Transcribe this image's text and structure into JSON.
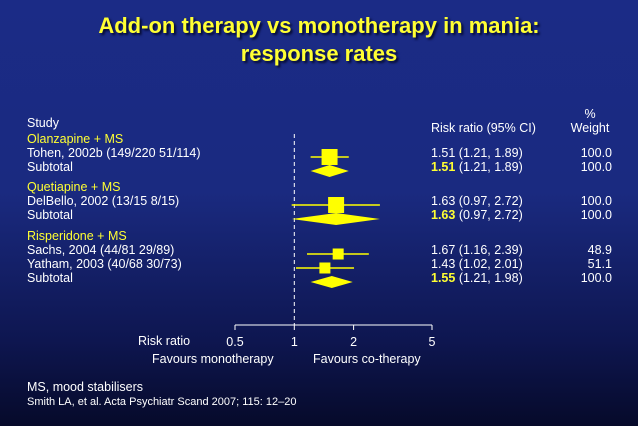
{
  "title_line1": "Add-on therapy vs monotherapy in mania:",
  "title_line2": "response rates",
  "headers": {
    "study": "Study",
    "rr": "Risk ratio (95% CI)",
    "pct": "%",
    "weight": "Weight"
  },
  "groups": [
    {
      "name": "Olanzapine + MS",
      "rows": [
        {
          "label": "Tohen, 2002b (149/220 51/114)",
          "rr_text": "1.51 (1.21, 1.89)",
          "weight": "100.0",
          "kind": "study"
        },
        {
          "label": "Subtotal",
          "rr_main": "1.51",
          "rr_ci": " (1.21, 1.89)",
          "weight": "100.0",
          "kind": "subtotal"
        }
      ]
    },
    {
      "name": "Quetiapine + MS",
      "rows": [
        {
          "label": "DelBello, 2002 (13/15 8/15)",
          "rr_text": "1.63 (0.97, 2.72)",
          "weight": "100.0",
          "kind": "study"
        },
        {
          "label": "Subtotal",
          "rr_main": "1.63",
          "rr_ci": " (0.97, 2.72)",
          "weight": "100.0",
          "kind": "subtotal"
        }
      ]
    },
    {
      "name": "Risperidone + MS",
      "rows": [
        {
          "label": "Sachs, 2004 (44/81 29/89)",
          "rr_text": "1.67 (1.16, 2.39)",
          "weight": "48.9",
          "kind": "study"
        },
        {
          "label": "Yatham, 2003 (40/68 30/73)",
          "rr_text": "1.43 (1.02, 2.01)",
          "weight": "51.1",
          "kind": "study"
        },
        {
          "label": "Subtotal",
          "rr_main": "1.55",
          "rr_ci": " (1.21, 1.98)",
          "weight": "100.0",
          "kind": "subtotal"
        }
      ]
    }
  ],
  "axis": {
    "label": "Risk ratio",
    "ticks": [
      "0.5",
      "1",
      "2",
      "5"
    ],
    "favours_left": "Favours monotherapy",
    "favours_right": "Favours co-therapy"
  },
  "footnote1": "MS, mood stabilisers",
  "footnote2": "Smith LA, et al. Acta Psychiatr Scand 2007; 115: 12–20",
  "colors": {
    "marker": "#ffff00",
    "title": "#ffff33",
    "background": "#1b2b86",
    "text": "#ffffff"
  },
  "chart_data": {
    "type": "forest",
    "xscale": "log",
    "xlim": [
      0.5,
      5
    ],
    "xticks": [
      0.5,
      1,
      2,
      5
    ],
    "reference_line": 1,
    "xlabel": "Risk ratio",
    "estimates": [
      {
        "study": "Tohen, 2002b",
        "group": "Olanzapine + MS",
        "rr": 1.51,
        "lo": 1.21,
        "hi": 1.89,
        "weight": 100.0,
        "kind": "study"
      },
      {
        "study": "Subtotal",
        "group": "Olanzapine + MS",
        "rr": 1.51,
        "lo": 1.21,
        "hi": 1.89,
        "weight": 100.0,
        "kind": "subtotal"
      },
      {
        "study": "DelBello, 2002",
        "group": "Quetiapine + MS",
        "rr": 1.63,
        "lo": 0.97,
        "hi": 2.72,
        "weight": 100.0,
        "kind": "study"
      },
      {
        "study": "Subtotal",
        "group": "Quetiapine + MS",
        "rr": 1.63,
        "lo": 0.97,
        "hi": 2.72,
        "weight": 100.0,
        "kind": "subtotal"
      },
      {
        "study": "Sachs, 2004",
        "group": "Risperidone + MS",
        "rr": 1.67,
        "lo": 1.16,
        "hi": 2.39,
        "weight": 48.9,
        "kind": "study"
      },
      {
        "study": "Yatham, 2003",
        "group": "Risperidone + MS",
        "rr": 1.43,
        "lo": 1.02,
        "hi": 2.01,
        "weight": 51.1,
        "kind": "study"
      },
      {
        "study": "Subtotal",
        "group": "Risperidone + MS",
        "rr": 1.55,
        "lo": 1.21,
        "hi": 1.98,
        "weight": 100.0,
        "kind": "subtotal"
      }
    ]
  }
}
